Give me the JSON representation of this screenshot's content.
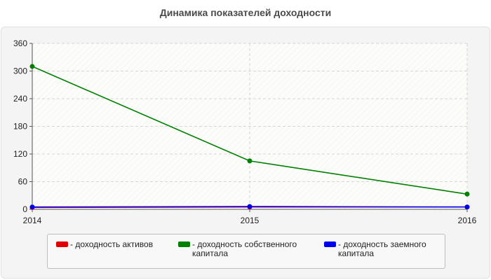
{
  "chart_data": {
    "type": "line",
    "title": "Динамика показателей доходности",
    "x": [
      "2014",
      "2015",
      "2016"
    ],
    "ylim": [
      0,
      360
    ],
    "yticks": [
      "0",
      "60",
      "120",
      "180",
      "240",
      "300",
      "360"
    ],
    "grid": true,
    "legend_position": "bottom",
    "series": [
      {
        "name": "- доходность активов",
        "color": "#e00000",
        "values": [
          4,
          5,
          5
        ]
      },
      {
        "name": "- доходность собственного капитала",
        "color": "#008000",
        "values": [
          310,
          105,
          33
        ]
      },
      {
        "name": "- доходность заемного капитала",
        "color": "#0000ee",
        "values": [
          5,
          6,
          5
        ]
      }
    ]
  }
}
